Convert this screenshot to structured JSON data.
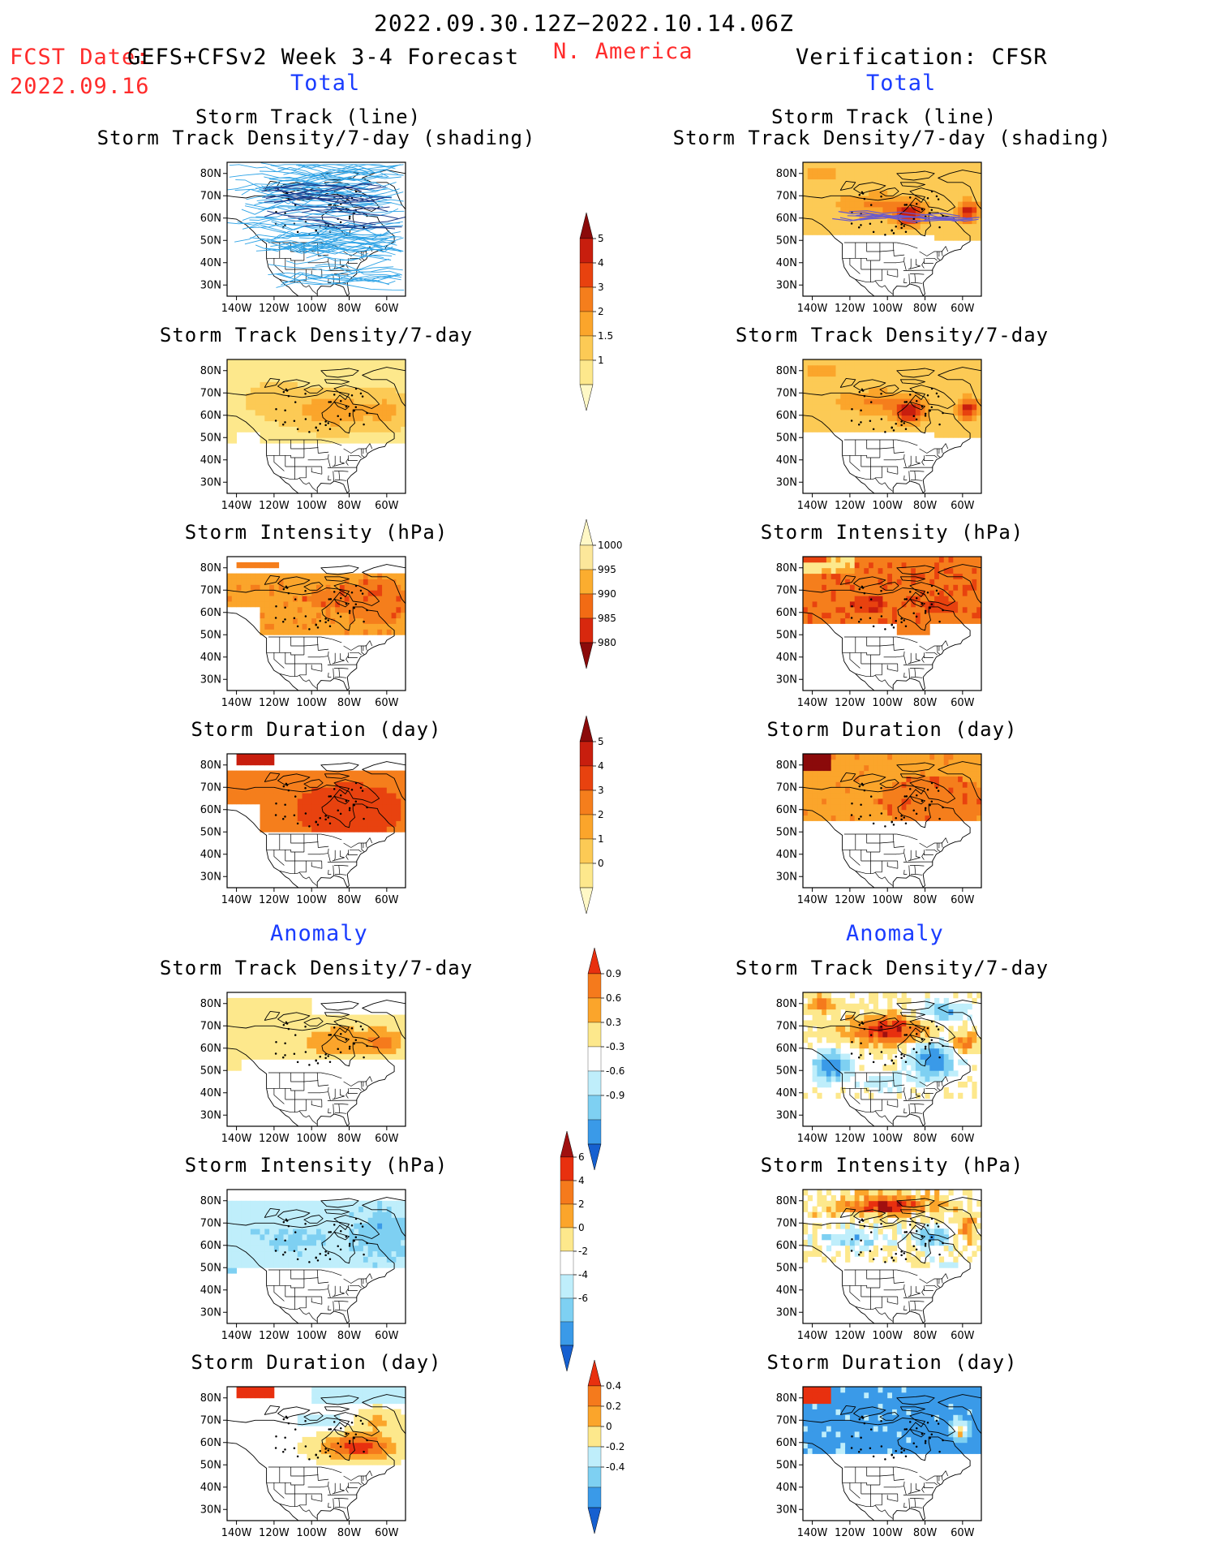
{
  "header": {
    "date_range": "2022.09.30.12Z−2022.10.14.06Z",
    "fcst_label": "FCST Date:",
    "model_label": "GEFS+CFSv2 Week 3-4 Forecast",
    "fcst_date": "2022.09.16",
    "region": "N. America",
    "verification": "Verification: CFSR",
    "total_left": "Total",
    "total_right": "Total",
    "anomaly_left": "Anomaly",
    "anomaly_right": "Anomaly"
  },
  "titles": {
    "track_line": "Storm Track (line)",
    "track_shading": "Storm Track Density/7-day (shading)",
    "density": "Storm Track Density/7-day",
    "intensity": "Storm Intensity (hPa)",
    "duration": "Storm Duration (day)"
  },
  "axes": {
    "lat_ticks": [
      "80N",
      "70N",
      "60N",
      "50N",
      "40N",
      "30N"
    ],
    "lon_ticks": [
      "140W",
      "120W",
      "100W",
      "80W",
      "60W"
    ]
  },
  "colorbars": {
    "density_total": {
      "labels": [
        "5",
        "4",
        "3",
        "2",
        "1.5",
        "1"
      ],
      "colors": [
        "#8b0a0a",
        "#c81e0e",
        "#e8420f",
        "#f57e1c",
        "#fba52b",
        "#fcca55",
        "#fde88c",
        "#fff8c6"
      ]
    },
    "intensity_total": {
      "labels": [
        "1000",
        "995",
        "990",
        "985",
        "980"
      ],
      "colors": [
        "#fff8c6",
        "#fce79a",
        "#fbad2f",
        "#f26b14",
        "#d8280e",
        "#8b0a0a"
      ]
    },
    "duration_total": {
      "labels": [
        "5",
        "4",
        "3",
        "2",
        "1",
        "0"
      ],
      "colors": [
        "#8b0a0a",
        "#c81e0e",
        "#e8420f",
        "#f57e1c",
        "#fba52b",
        "#fcca55",
        "#fde88c",
        "#fff8c6"
      ]
    },
    "density_anom": {
      "labels": [
        "0.9",
        "0.6",
        "0.3",
        "-0.3",
        "-0.6",
        "-0.9"
      ],
      "colors": [
        "#e8300f",
        "#f57a1c",
        "#fba52b",
        "#fde88c",
        "#ffffff",
        "#bfeefb",
        "#7ed0f2",
        "#3a9ae8",
        "#1660d0"
      ]
    },
    "intensity_anom": {
      "labels": [
        "6",
        "4",
        "2",
        "0",
        "-2",
        "-4",
        "-6"
      ],
      "colors": [
        "#a01010",
        "#e8300f",
        "#f57a1c",
        "#fba52b",
        "#fde88c",
        "#ffffff",
        "#bfeefb",
        "#7ed0f2",
        "#3a9ae8",
        "#1660d0"
      ]
    },
    "duration_anom": {
      "labels": [
        "0.4",
        "0.2",
        "0",
        "-0.2",
        "-0.4"
      ],
      "colors": [
        "#e8300f",
        "#f57a1c",
        "#fba52b",
        "#fde88c",
        "#bfeefb",
        "#7ed0f2",
        "#3a9ae8",
        "#1660d0"
      ]
    }
  }
}
